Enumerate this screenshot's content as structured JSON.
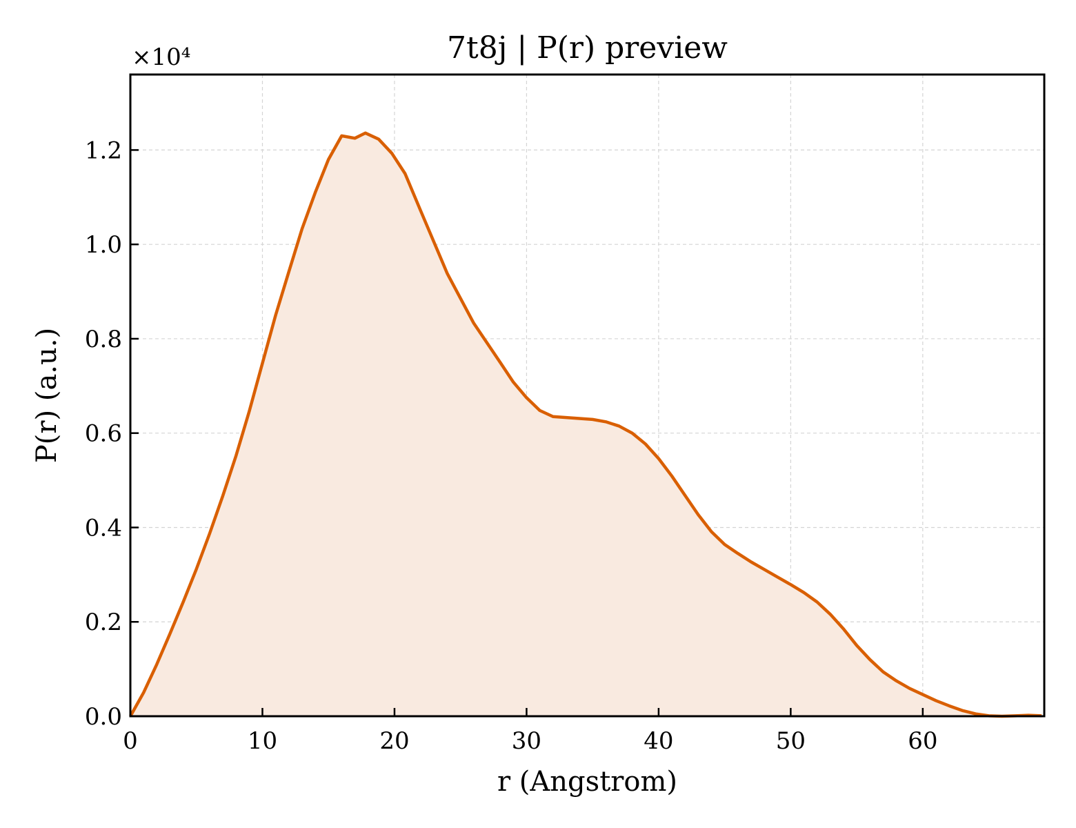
{
  "chart_data": {
    "type": "area",
    "title": "7t8j | P(r) preview",
    "xlabel": "r (Angstrom)",
    "ylabel": "P(r) (a.u.)",
    "y_offset_label": "×10⁴",
    "xlim": [
      0,
      69.2
    ],
    "ylim": [
      0,
      13600
    ],
    "x_ticks": [
      0,
      10,
      20,
      30,
      40,
      50,
      60
    ],
    "x_tick_labels": [
      "0",
      "10",
      "20",
      "30",
      "40",
      "50",
      "60"
    ],
    "y_ticks": [
      0,
      2000,
      4000,
      6000,
      8000,
      10000,
      12000
    ],
    "y_tick_labels": [
      "0.0",
      "0.2",
      "0.4",
      "0.6",
      "0.8",
      "1.0",
      "1.2"
    ],
    "grid": true,
    "line_color": "#d95f02",
    "fill_color": "#f9eae0",
    "series": [
      {
        "x": [
          0,
          1,
          2,
          3,
          4,
          5,
          6,
          7,
          8,
          9,
          10,
          11,
          12,
          13,
          14,
          15,
          16,
          17,
          17.8,
          18.8,
          19.8,
          20.8,
          22,
          24,
          26,
          28,
          29,
          30,
          31,
          32,
          33,
          34,
          35,
          36,
          37,
          38,
          39,
          40,
          41,
          42,
          43,
          44,
          45,
          46,
          47,
          48,
          49,
          50,
          51,
          52,
          53,
          54,
          55,
          56,
          57,
          58,
          59,
          60,
          61,
          62,
          63,
          64,
          65,
          66,
          67,
          68,
          69
        ],
        "y": [
          0,
          500,
          1100,
          1750,
          2420,
          3120,
          3870,
          4670,
          5520,
          6460,
          7480,
          8500,
          9420,
          10330,
          11100,
          11800,
          12300,
          12250,
          12360,
          12230,
          11930,
          11500,
          10700,
          9380,
          8330,
          7500,
          7080,
          6750,
          6480,
          6350,
          6330,
          6310,
          6290,
          6240,
          6150,
          6000,
          5770,
          5460,
          5090,
          4680,
          4270,
          3910,
          3640,
          3450,
          3270,
          3110,
          2950,
          2790,
          2620,
          2420,
          2160,
          1850,
          1500,
          1200,
          940,
          750,
          590,
          460,
          330,
          220,
          120,
          50,
          10,
          0,
          10,
          20,
          10
        ]
      }
    ]
  }
}
